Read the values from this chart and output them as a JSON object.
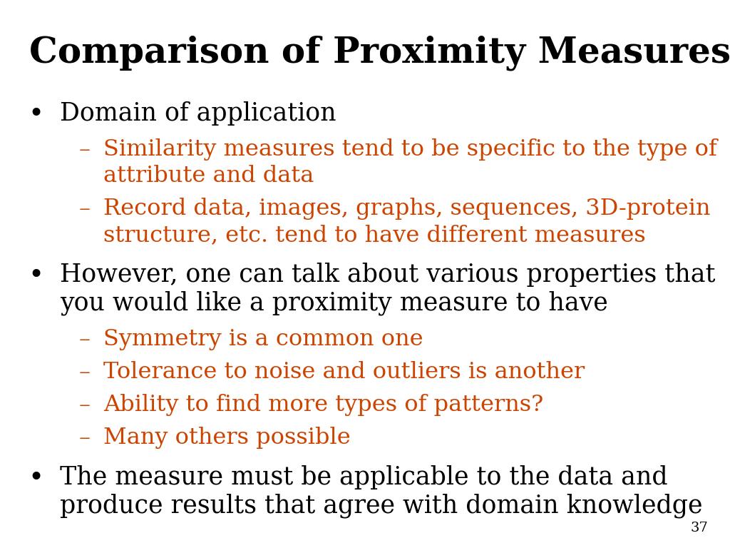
{
  "title": "Comparison of Proximity Measures",
  "title_color": "#000000",
  "title_fontsize": 36,
  "title_fontweight": "bold",
  "background_color": "#ffffff",
  "black_color": "#000000",
  "orange_color": "#cc4400",
  "slide_number": "37",
  "bullet_fontsize": 25,
  "sub_fontsize": 23,
  "content": [
    {
      "type": "bullet",
      "color": "#000000",
      "text_lines": [
        "Domain of application"
      ],
      "children": [
        {
          "color": "#cc4400",
          "lines": [
            "Similarity measures tend to be specific to the type of",
            "attribute and data"
          ]
        },
        {
          "color": "#cc4400",
          "lines": [
            "Record data, images, graphs, sequences, 3D-protein",
            "structure, etc. tend to have different measures"
          ]
        }
      ]
    },
    {
      "type": "bullet",
      "color": "#000000",
      "text_lines": [
        "However, one can talk about various properties that",
        "you would like a proximity measure to have"
      ],
      "children": [
        {
          "color": "#cc4400",
          "lines": [
            "Symmetry is a common one"
          ]
        },
        {
          "color": "#cc4400",
          "lines": [
            "Tolerance to noise and outliers is another"
          ]
        },
        {
          "color": "#cc4400",
          "lines": [
            "Ability to find more types of patterns?"
          ]
        },
        {
          "color": "#cc4400",
          "lines": [
            "Many others possible"
          ]
        }
      ]
    },
    {
      "type": "bullet",
      "color": "#000000",
      "text_lines": [
        "The measure must be applicable to the data and",
        "produce results that agree with domain knowledge"
      ],
      "children": []
    }
  ]
}
